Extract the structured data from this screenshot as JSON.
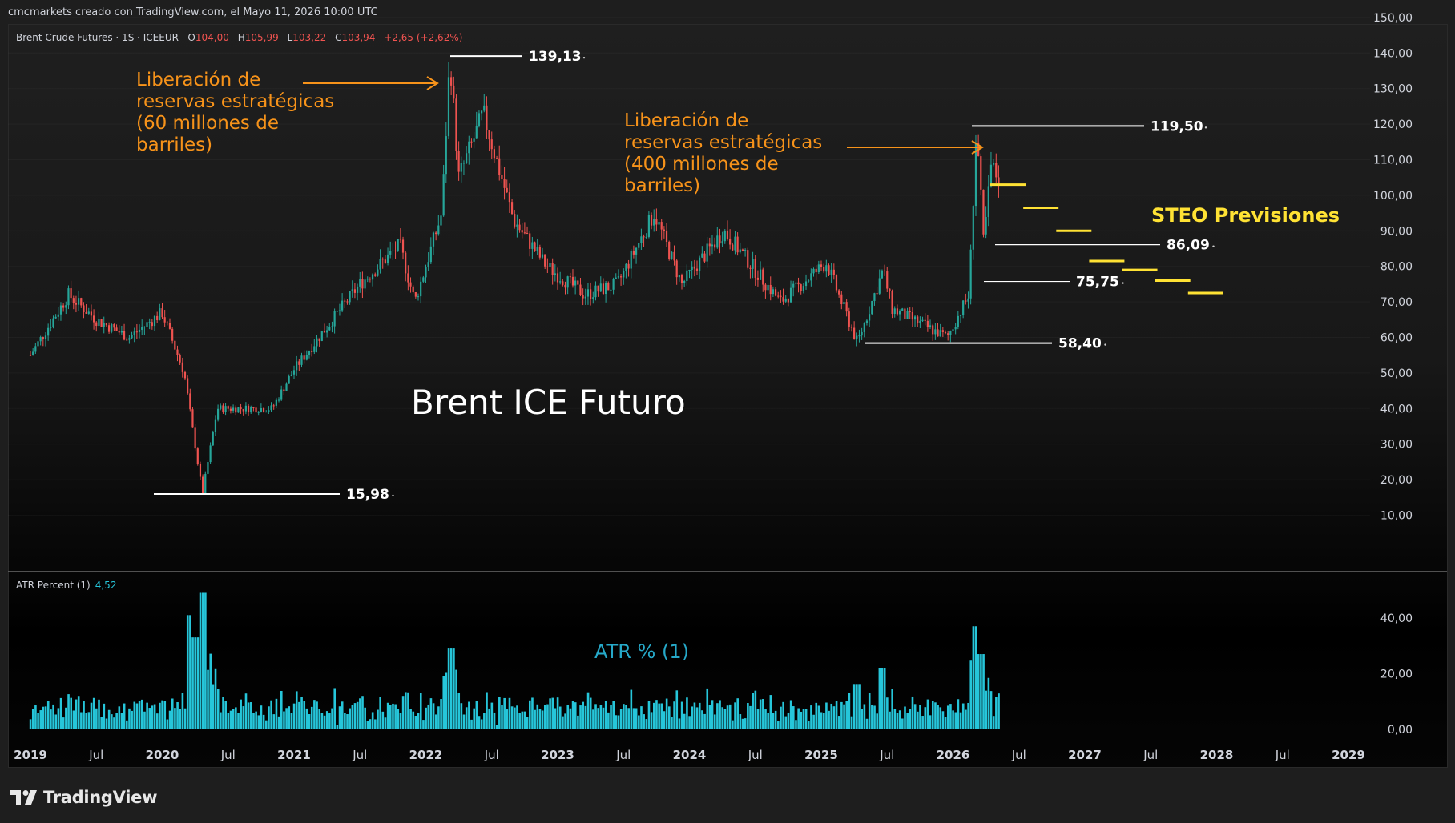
{
  "header": {
    "credit": "cmcmarkets creado con TradingView.com, el Mayo 11, 2026 10:00 UTC"
  },
  "legend": {
    "symbol": "Brent Crude Futures · 1S · ICEEUR",
    "open_label": "O",
    "open": "104,00",
    "high_label": "H",
    "high": "105,99",
    "low_label": "L",
    "low": "103,22",
    "close_label": "C",
    "close": "103,94",
    "change": "+2,65 (+2,62%)"
  },
  "atr_legend": {
    "name": "ATR Percent (1)",
    "value": "4,52"
  },
  "annotations": {
    "release_2022": [
      "Liberación de",
      "reservas estratégicas",
      "(60 millones de",
      "barriles)"
    ],
    "release_2026": [
      "Liberación de",
      "reservas estratégicas",
      "(400 millones de",
      "barriles)"
    ],
    "chart_title": "Brent ICE Futuro",
    "steo": "STEO Previsiones",
    "atr": "ATR % (1)"
  },
  "colors": {
    "up": "#26a69a",
    "down": "#ef5350",
    "annotation_orange": "#f7931a",
    "steo_yellow": "#ffe234",
    "atr_bars": "#26c6da",
    "level_lines": "#ffffff"
  },
  "branding": {
    "logo_icon": "tradingview-logo-icon",
    "logo_text": "TradingView"
  },
  "chart_data": [
    {
      "type": "candlestick",
      "symbol": "Brent Crude Futures",
      "interval": "1S",
      "y_axis_ticks": [
        "10,00",
        "20,00",
        "30,00",
        "40,00",
        "50,00",
        "60,00",
        "70,00",
        "80,00",
        "90,00",
        "100,00",
        "110,00",
        "120,00",
        "130,00",
        "140,00",
        "150,00"
      ],
      "ylim": [
        5,
        150
      ],
      "x_axis_labels": [
        "2019",
        "Jul",
        "2020",
        "Jul",
        "2021",
        "Jul",
        "2022",
        "Jul",
        "2023",
        "Jul",
        "2024",
        "Jul",
        "2025",
        "Jul",
        "2026",
        "Jul",
        "2027",
        "Jul",
        "2028",
        "Jul",
        "2029"
      ],
      "key_points": [
        {
          "date": "2019-01-01",
          "price": 55
        },
        {
          "date": "2019-04-15",
          "price": 72
        },
        {
          "date": "2019-07-01",
          "price": 65
        },
        {
          "date": "2019-10-01",
          "price": 60
        },
        {
          "date": "2019-12-31",
          "price": 67
        },
        {
          "date": "2020-03-01",
          "price": 50
        },
        {
          "date": "2020-04-21",
          "price": 15.98
        },
        {
          "date": "2020-06-01",
          "price": 40
        },
        {
          "date": "2020-11-01",
          "price": 40
        },
        {
          "date": "2021-01-01",
          "price": 51
        },
        {
          "date": "2021-07-01",
          "price": 75
        },
        {
          "date": "2021-10-20",
          "price": 86
        },
        {
          "date": "2021-12-01",
          "price": 70
        },
        {
          "date": "2022-02-15",
          "price": 95
        },
        {
          "date": "2022-03-07",
          "price": 139.13
        },
        {
          "date": "2022-04-01",
          "price": 105
        },
        {
          "date": "2022-06-08",
          "price": 123
        },
        {
          "date": "2022-09-01",
          "price": 93
        },
        {
          "date": "2022-12-01",
          "price": 80
        },
        {
          "date": "2023-03-15",
          "price": 72
        },
        {
          "date": "2023-06-15",
          "price": 75
        },
        {
          "date": "2023-09-25",
          "price": 95
        },
        {
          "date": "2023-12-10",
          "price": 75
        },
        {
          "date": "2024-04-05",
          "price": 90
        },
        {
          "date": "2024-09-10",
          "price": 70
        },
        {
          "date": "2025-01-15",
          "price": 81
        },
        {
          "date": "2025-04-10",
          "price": 58.4
        },
        {
          "date": "2025-06-20",
          "price": 79
        },
        {
          "date": "2025-07-15",
          "price": 68
        },
        {
          "date": "2025-12-15",
          "price": 60
        },
        {
          "date": "2026-02-15",
          "price": 72
        },
        {
          "date": "2026-03-05",
          "price": 119.5
        },
        {
          "date": "2026-03-25",
          "price": 86.09
        },
        {
          "date": "2026-04-15",
          "price": 108
        },
        {
          "date": "2026-05-11",
          "price": 103.94
        }
      ],
      "levels": [
        {
          "label": "139,13",
          "price": 139.13,
          "date": "2022-03-07"
        },
        {
          "label": "119,50",
          "price": 119.5,
          "date": "2026-03-05"
        },
        {
          "label": "86,09",
          "price": 86.09,
          "date": "2026-03-25"
        },
        {
          "label": "75,75",
          "price": 75.75,
          "date": "2026-03-01"
        },
        {
          "label": "58,40",
          "price": 58.4,
          "date": "2025-04-10"
        },
        {
          "label": "15,98",
          "price": 15.98,
          "date": "2020-04-21"
        }
      ],
      "steo_forecast": [
        {
          "date": "2026-06",
          "price": 103
        },
        {
          "date": "2026-09",
          "price": 96.5
        },
        {
          "date": "2026-12",
          "price": 90
        },
        {
          "date": "2027-03",
          "price": 81.5
        },
        {
          "date": "2027-06",
          "price": 79
        },
        {
          "date": "2027-09",
          "price": 76
        },
        {
          "date": "2027-12",
          "price": 72.5
        }
      ]
    },
    {
      "type": "bar",
      "name": "ATR Percent (1)",
      "last_value": "4,52",
      "y_axis_ticks": [
        "0,00",
        "20,00",
        "40,00"
      ],
      "ylim": [
        0,
        53
      ],
      "spikes": [
        {
          "date": "2020-03-20",
          "value": 41
        },
        {
          "date": "2020-04-21",
          "value": 49
        },
        {
          "date": "2020-04-01",
          "value": 33
        },
        {
          "date": "2022-03-07",
          "value": 29
        },
        {
          "date": "2025-04-10",
          "value": 16
        },
        {
          "date": "2025-06-20",
          "value": 22
        },
        {
          "date": "2026-03-05",
          "value": 37
        },
        {
          "date": "2026-03-20",
          "value": 27
        }
      ]
    }
  ]
}
